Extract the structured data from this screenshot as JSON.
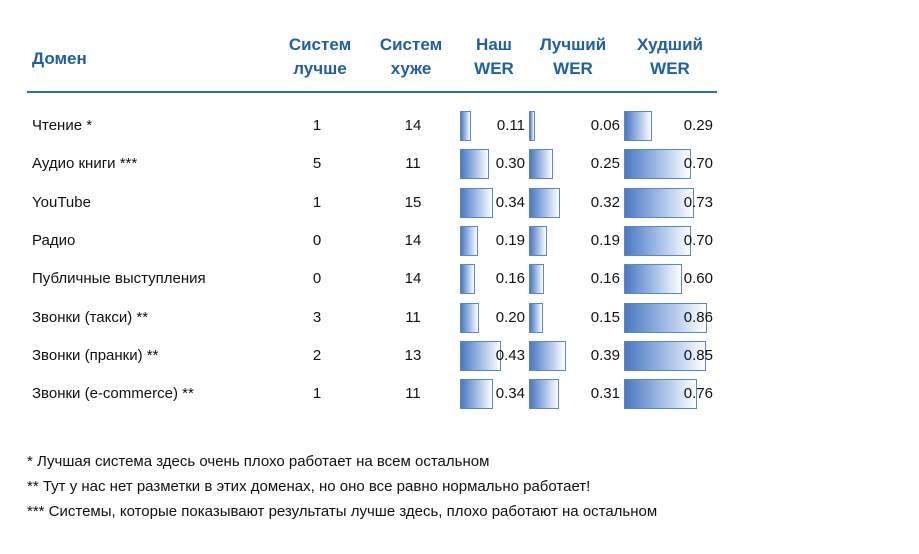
{
  "chart_data": {
    "type": "table",
    "columns": [
      {
        "key": "domain",
        "label_lines": [
          "Домен"
        ]
      },
      {
        "key": "better",
        "label_lines": [
          "Систем",
          "лучше"
        ]
      },
      {
        "key": "worse",
        "label_lines": [
          "Систем",
          "хуже"
        ]
      },
      {
        "key": "our_wer",
        "label_lines": [
          "Наш",
          "WER"
        ]
      },
      {
        "key": "best_wer",
        "label_lines": [
          "Лучший",
          "WER"
        ]
      },
      {
        "key": "worst_wer",
        "label_lines": [
          "Худший",
          "WER"
        ]
      }
    ],
    "rows": [
      {
        "domain": "Чтение *",
        "better": "1",
        "worse": "14",
        "our_wer": 0.11,
        "best_wer": 0.06,
        "worst_wer": 0.29
      },
      {
        "domain": "Аудио книги ***",
        "better": "5",
        "worse": "11",
        "our_wer": 0.3,
        "best_wer": 0.25,
        "worst_wer": 0.7
      },
      {
        "domain": "YouTube",
        "better": "1",
        "worse": "15",
        "our_wer": 0.34,
        "best_wer": 0.32,
        "worst_wer": 0.73
      },
      {
        "domain": "Радио",
        "better": "0",
        "worse": "14",
        "our_wer": 0.19,
        "best_wer": 0.19,
        "worst_wer": 0.7
      },
      {
        "domain": "Публичные выступления",
        "better": "0",
        "worse": "14",
        "our_wer": 0.16,
        "best_wer": 0.16,
        "worst_wer": 0.6
      },
      {
        "domain": "Звонки (такси) **",
        "better": "3",
        "worse": "11",
        "our_wer": 0.2,
        "best_wer": 0.15,
        "worst_wer": 0.86
      },
      {
        "domain": "Звонки (пранки) **",
        "better": "2",
        "worse": "13",
        "our_wer": 0.43,
        "best_wer": 0.39,
        "worst_wer": 0.85
      },
      {
        "domain": "Звонки (e-commerce) **",
        "better": "1",
        "worse": "11",
        "our_wer": 0.34,
        "best_wer": 0.31,
        "worst_wer": 0.76
      }
    ],
    "data_bar_colors": [
      "#4a78c2",
      "#a9c2e8",
      "#ffffff"
    ],
    "header_color": "#1f5fa8",
    "footnotes": [
      "* Лучшая система здесь очень плохо работает на всем остальном",
      "** Тут у нас нет разметки в этих доменах, но оно все равно нормально работает!",
      "*** Системы, которые показывают результаты лучше здесь, плохо работают на остальном"
    ]
  }
}
